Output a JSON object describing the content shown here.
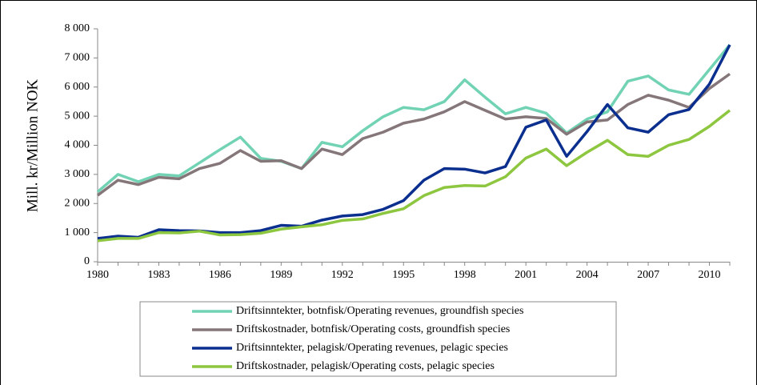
{
  "chart_data": {
    "type": "line",
    "y_label": "Mill. kr/Million NOK",
    "categories": [
      "1980",
      null,
      null,
      "1983",
      null,
      null,
      "1986",
      null,
      null,
      "1989",
      null,
      null,
      "1992",
      null,
      null,
      "1995",
      null,
      null,
      "1998",
      null,
      null,
      "2001",
      null,
      null,
      "2004",
      null,
      null,
      "2007",
      null,
      null,
      "2010",
      null
    ],
    "series": [
      {
        "name": "Driftsinntekter, botnfisk/Operating revenues, groundfish species",
        "color": "#72d3b4",
        "values": [
          2400,
          3000,
          2750,
          3000,
          2950,
          3400,
          3850,
          4280,
          3550,
          3450,
          3200,
          4100,
          3950,
          4500,
          4980,
          5300,
          5220,
          5500,
          6250,
          5650,
          5080,
          5300,
          5100,
          4420,
          4900,
          5150,
          6200,
          6380,
          5900,
          5750,
          6600,
          7450
        ]
      },
      {
        "name": "Driftskostnader, botnfisk/Operating costs, groundfish species",
        "color": "#857779",
        "values": [
          2280,
          2800,
          2650,
          2900,
          2850,
          3200,
          3380,
          3820,
          3450,
          3470,
          3200,
          3870,
          3680,
          4230,
          4450,
          4760,
          4900,
          5150,
          5500,
          5200,
          4900,
          4980,
          4920,
          4380,
          4800,
          4870,
          5400,
          5720,
          5550,
          5300,
          5950,
          6450
        ]
      },
      {
        "name": "Driftsinntekter, pelagisk/Operating revenues, pelagic species",
        "color": "#0b2f8f",
        "values": [
          800,
          880,
          840,
          1100,
          1070,
          1060,
          1000,
          1000,
          1070,
          1250,
          1220,
          1430,
          1570,
          1620,
          1800,
          2100,
          2800,
          3200,
          3180,
          3050,
          3270,
          4620,
          4870,
          3620,
          4470,
          5400,
          4600,
          4450,
          5050,
          5230,
          6100,
          7450
        ]
      },
      {
        "name": "Driftskostnader, pelagisk/Operating costs, pelagic species",
        "color": "#8dc63f",
        "values": [
          720,
          800,
          800,
          1000,
          990,
          1050,
          920,
          930,
          980,
          1120,
          1200,
          1270,
          1420,
          1470,
          1660,
          1820,
          2270,
          2550,
          2620,
          2600,
          2920,
          3560,
          3870,
          3300,
          3760,
          4170,
          3680,
          3620,
          4000,
          4200,
          4650,
          5200
        ]
      }
    ],
    "ylim": [
      0,
      8000
    ],
    "yticks": [
      0,
      {
        "value": 1000,
        "label": "1 000"
      },
      {
        "value": 2000,
        "label": "2 000"
      },
      {
        "value": 3000,
        "label": "3 000"
      },
      {
        "value": 4000,
        "label": "4 000"
      },
      {
        "value": 5000,
        "label": "5 000"
      },
      {
        "value": 6000,
        "label": "6 000"
      },
      {
        "value": 7000,
        "label": "7 000"
      },
      {
        "value": 8000,
        "label": "8 000"
      }
    ]
  }
}
